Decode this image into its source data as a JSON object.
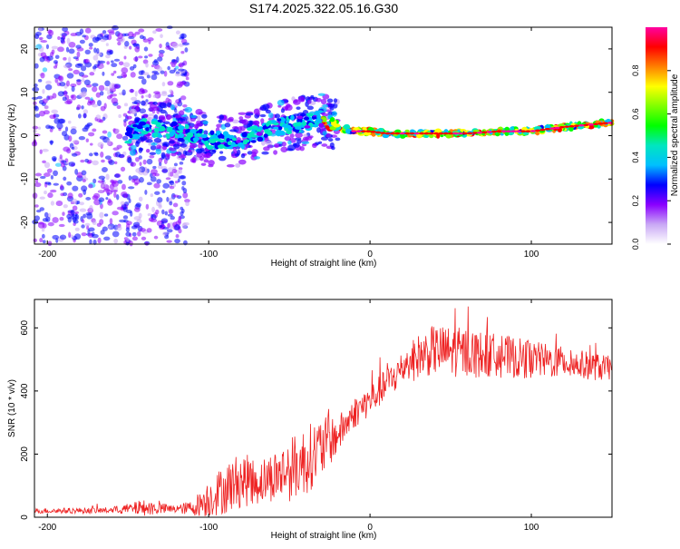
{
  "title": "S174.2025.322.05.16.G30",
  "chart_data": [
    {
      "type": "heatmap",
      "name": "spectrogram",
      "xlabel": "Height of straight line (km)",
      "ylabel": "Frequency (Hz)",
      "xlim": [
        -208,
        150
      ],
      "ylim": [
        -25,
        25
      ],
      "xticks": [
        -200,
        -100,
        0,
        100
      ],
      "yticks": [
        -20,
        -10,
        0,
        10,
        20
      ],
      "ridge": {
        "x": [
          -200,
          -150,
          -140,
          -120,
          -100,
          -80,
          -60,
          -40,
          -30,
          -20,
          -10,
          0,
          10,
          20,
          40,
          60,
          80,
          100,
          120,
          150
        ],
        "freq": [
          0,
          0,
          2,
          1,
          -1,
          -1,
          2,
          3,
          4,
          2,
          1,
          1,
          0.5,
          0.5,
          0.5,
          0.5,
          1,
          1,
          2,
          3
        ]
      },
      "colorbar": {
        "label": "Normalized spectral amplitude",
        "range": [
          0,
          1
        ],
        "ticks": [
          0,
          0.2,
          0.4,
          0.6,
          0.8
        ],
        "tick_labels": [
          "0.0",
          "0.2",
          "0.4",
          "0.6",
          "0.8"
        ],
        "colors": [
          "#ffffff",
          "#c9a8f5",
          "#8a00ff",
          "#0000ff",
          "#00bfff",
          "#00e6c0",
          "#00ff00",
          "#80ff00",
          "#ffff00",
          "#ff8000",
          "#ff0000",
          "#ff00a0"
        ]
      }
    },
    {
      "type": "line",
      "name": "snr",
      "xlabel": "Height of straight line (km)",
      "ylabel": "SNR (10 * v/v)",
      "xlim": [
        -208,
        150
      ],
      "ylim": [
        0,
        690
      ],
      "xticks": [
        -200,
        -100,
        0,
        100
      ],
      "yticks": [
        0,
        200,
        400,
        600
      ],
      "color": "#ee2222",
      "envelope": {
        "x": [
          -208,
          -160,
          -140,
          -120,
          -110,
          -100,
          -90,
          -80,
          -70,
          -60,
          -50,
          -40,
          -30,
          -20,
          -10,
          0,
          10,
          20,
          30,
          40,
          60,
          80,
          100,
          120,
          150
        ],
        "mean": [
          20,
          22,
          30,
          25,
          30,
          60,
          90,
          120,
          110,
          130,
          150,
          180,
          220,
          260,
          330,
          370,
          420,
          470,
          510,
          530,
          520,
          510,
          500,
          490,
          470
        ],
        "spread": [
          8,
          10,
          25,
          12,
          25,
          60,
          80,
          90,
          70,
          80,
          100,
          110,
          100,
          60,
          50,
          50,
          50,
          60,
          70,
          80,
          80,
          70,
          60,
          50,
          40
        ]
      }
    }
  ]
}
